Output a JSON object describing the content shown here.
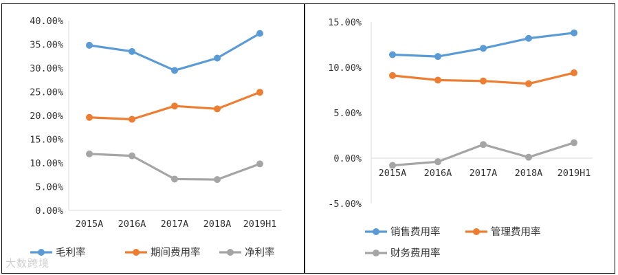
{
  "watermark": "大数跨境",
  "chart_data": [
    {
      "type": "line",
      "categories": [
        "2015A",
        "2016A",
        "2017A",
        "2018A",
        "2019H1"
      ],
      "y_ticks": [
        "40.00%",
        "35.00%",
        "30.00%",
        "25.00%",
        "20.00%",
        "15.00%",
        "10.00%",
        "5.00%",
        "0.00%"
      ],
      "ylim": [
        0,
        40
      ],
      "grid": false,
      "legend_position": "bottom",
      "series": [
        {
          "name": "毛利率",
          "color": "#5B9BD5",
          "values": [
            34.8,
            33.5,
            29.5,
            32.1,
            37.3
          ]
        },
        {
          "name": "期间费用率",
          "color": "#ED7D31",
          "values": [
            19.6,
            19.2,
            22.0,
            21.4,
            24.9
          ]
        },
        {
          "name": "净利率",
          "color": "#A5A5A5",
          "values": [
            11.9,
            11.5,
            6.6,
            6.5,
            9.8
          ]
        }
      ]
    },
    {
      "type": "line",
      "categories": [
        "2015A",
        "2016A",
        "2017A",
        "2018A",
        "2019H1"
      ],
      "y_ticks": [
        "15.00%",
        "10.00%",
        "5.00%",
        "0.00%",
        "-5.00%"
      ],
      "ylim": [
        -5,
        15
      ],
      "grid": false,
      "legend_position": "bottom",
      "series": [
        {
          "name": "销售费用率",
          "color": "#5B9BD5",
          "values": [
            11.4,
            11.2,
            12.1,
            13.2,
            13.8
          ]
        },
        {
          "name": "管理费用率",
          "color": "#ED7D31",
          "values": [
            9.1,
            8.6,
            8.5,
            8.2,
            9.4
          ]
        },
        {
          "name": "财务费用率",
          "color": "#A5A5A5",
          "values": [
            -0.8,
            -0.4,
            1.5,
            0.1,
            1.7
          ]
        }
      ]
    }
  ]
}
